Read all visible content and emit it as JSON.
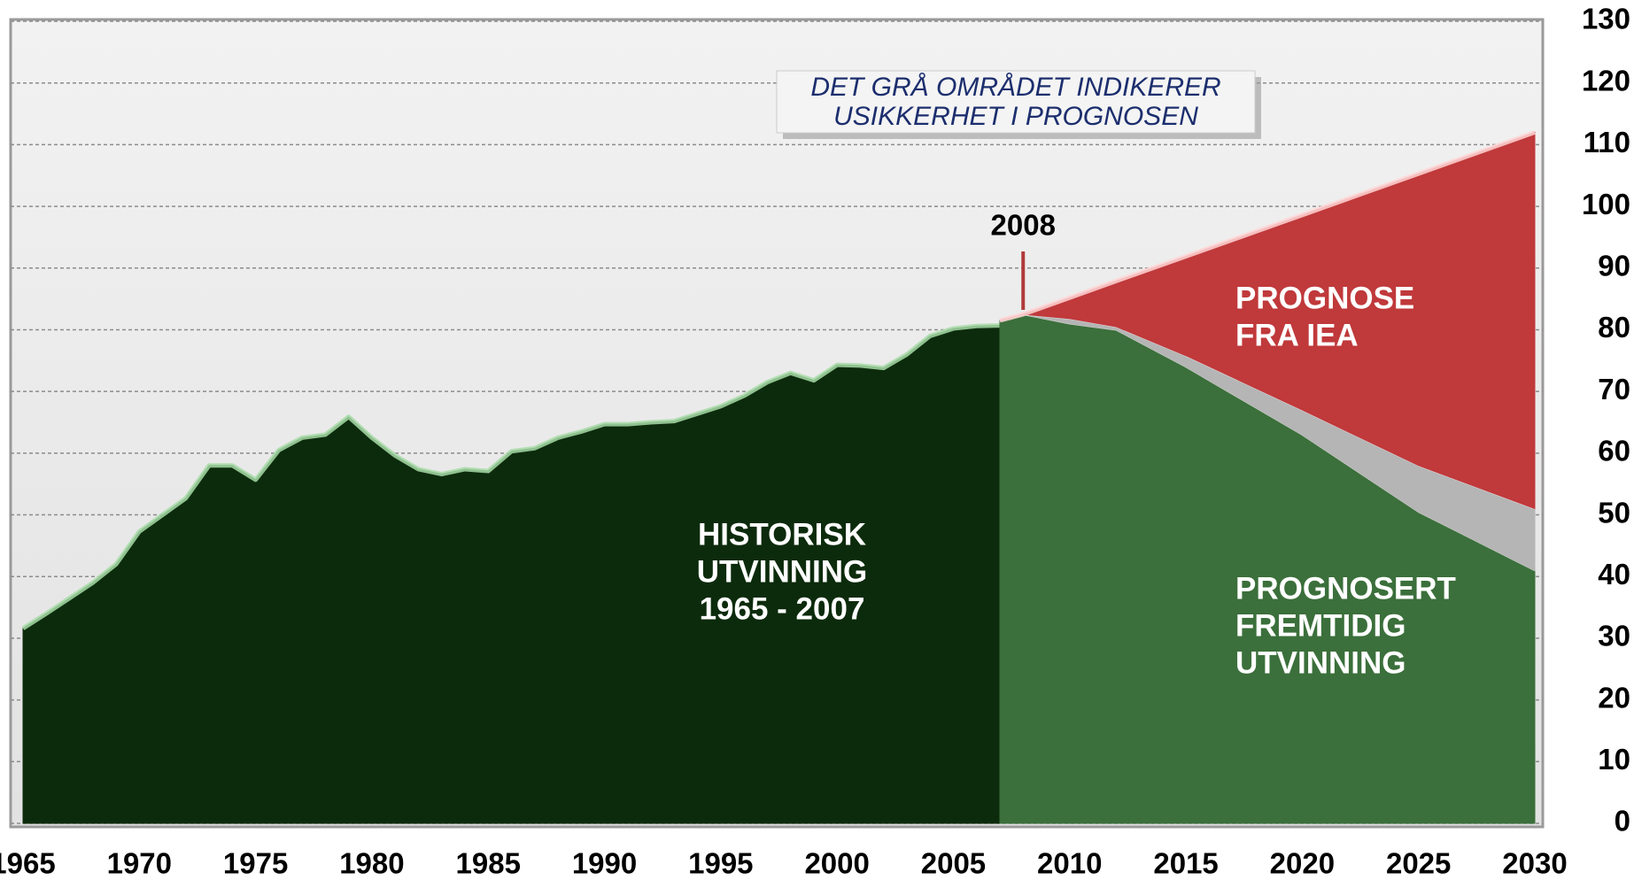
{
  "chart_data": {
    "type": "area",
    "xlim": [
      1965,
      2030
    ],
    "xticks": [
      1965,
      1970,
      1975,
      1980,
      1985,
      1990,
      1995,
      2000,
      2005,
      2010,
      2015,
      2020,
      2025,
      2030
    ],
    "ylim": [
      0,
      130
    ],
    "yticks": [
      0,
      10,
      20,
      30,
      40,
      50,
      60,
      70,
      80,
      90,
      100,
      110,
      120,
      130
    ],
    "grid": true,
    "series": [
      {
        "label_lines": [
          "HISTORISK",
          "UTVINNING",
          "1965 - 2007"
        ],
        "color": "#0c2b0c",
        "x": [
          1965,
          1966,
          1967,
          1968,
          1969,
          1970,
          1971,
          1972,
          1973,
          1974,
          1975,
          1976,
          1977,
          1978,
          1979,
          1980,
          1981,
          1982,
          1983,
          1984,
          1985,
          1986,
          1987,
          1988,
          1989,
          1990,
          1991,
          1992,
          1993,
          1994,
          1995,
          1996,
          1997,
          1998,
          1999,
          2000,
          2001,
          2002,
          2003,
          2004,
          2005,
          2006,
          2007
        ],
        "values": [
          31.6,
          34,
          36.5,
          39,
          42,
          47.3,
          50,
          52.7,
          58,
          58,
          55.7,
          60.5,
          62.5,
          63,
          65.9,
          62.5,
          59.6,
          57.4,
          56.6,
          57.4,
          57.1,
          60.3,
          60.8,
          62.5,
          63.5,
          64.7,
          64.7,
          65,
          65.2,
          66.4,
          67.6,
          69.3,
          71.5,
          73,
          71.8,
          74.3,
          74.2,
          73.8,
          76,
          79,
          80.2,
          80.6,
          80.7
        ]
      },
      {
        "label_lines": [
          "PROGNOSERT",
          "FREMTIDIG",
          "UTVINNING"
        ],
        "color": "#3b6f3b",
        "x": [
          2007,
          2008,
          2010,
          2012,
          2015,
          2020,
          2025,
          2030
        ],
        "values": [
          81.5,
          82.5,
          81,
          80,
          74,
          63,
          50.5,
          41
        ]
      },
      {
        "color": "#b5b5b5",
        "x": [
          2007,
          2008,
          2010,
          2012,
          2015,
          2020,
          2025,
          2030
        ],
        "values": [
          81.5,
          82.5,
          81.8,
          80.5,
          75.8,
          67,
          58,
          51
        ]
      },
      {
        "label_lines": [
          "PROGNOSE",
          "FRA IEA"
        ],
        "color": "#c0393b",
        "x": [
          2007,
          2008,
          2010,
          2012,
          2015,
          2020,
          2025,
          2030
        ],
        "values": [
          81.5,
          82.5,
          85.2,
          87.9,
          91.9,
          98.6,
          105.3,
          112
        ]
      }
    ],
    "annotations": {
      "note": [
        "DET GRÅ OMRÅDET INDIKERER",
        "USIKKERHET I PROGNOSEN"
      ],
      "marker": {
        "x": 2008
      }
    }
  }
}
